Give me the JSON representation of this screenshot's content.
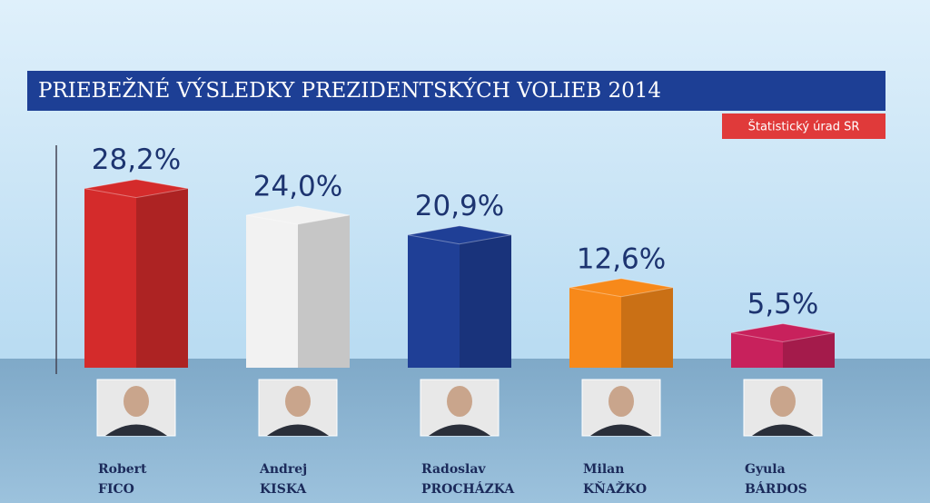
{
  "chart_data": {
    "type": "bar",
    "title": "PRIEBEŽNÉ VÝSLEDKY PREZIDENTSKÝCH VOLIEB 2014",
    "source": "Štatistický úrad SR",
    "categories": [
      "Robert\nFICO",
      "Andrej\nKISKA",
      "Radoslav\nPROCHÁZKA",
      "Milan\nKŇAŽKO",
      "Gyula\nBÁRDOS"
    ],
    "values": [
      28.2,
      24.0,
      20.9,
      12.6,
      5.5
    ],
    "value_labels": [
      "28,2%",
      "24,0%",
      "20,9%",
      "12,6%",
      "5,5%"
    ],
    "colors": [
      "#d42b2b",
      "#f2f2f2",
      "#1f3f96",
      "#f7891a",
      "#c8215c"
    ]
  }
}
